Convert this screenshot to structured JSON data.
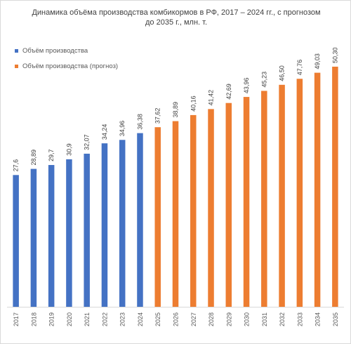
{
  "chart_data": {
    "type": "bar",
    "title": "Динамика  объёма производства комбикормов в РФ, 2017 – 2024 гг., с прогнозом до 2035 г., млн. т.",
    "xlabel": "",
    "ylabel": "",
    "ylim": [
      0,
      55
    ],
    "categories": [
      "2017",
      "2018",
      "2019",
      "2020",
      "2021",
      "2022",
      "2023",
      "2024",
      "2025",
      "2026",
      "2027",
      "2028",
      "2029",
      "2030",
      "2031",
      "2032",
      "2033",
      "2034",
      "2035"
    ],
    "legend_position": "top-left",
    "grid": false,
    "series": [
      {
        "name": "Объём производства",
        "color": "#4472C4",
        "values": [
          27.6,
          28.89,
          29.7,
          30.9,
          32.07,
          34.24,
          34.96,
          36.38,
          null,
          null,
          null,
          null,
          null,
          null,
          null,
          null,
          null,
          null,
          null
        ],
        "labels": [
          "27,6",
          "28,89",
          "29,7",
          "30,9",
          "32,07",
          "34,24",
          "34,96",
          "36,38",
          "",
          "",
          "",
          "",
          "",
          "",
          "",
          "",
          "",
          "",
          ""
        ]
      },
      {
        "name": "Объём производства (прогноз)",
        "color": "#ED7D31",
        "values": [
          null,
          null,
          null,
          null,
          null,
          null,
          null,
          null,
          37.62,
          38.89,
          40.16,
          41.42,
          42.69,
          43.96,
          45.23,
          46.5,
          47.76,
          49.03,
          50.3
        ],
        "labels": [
          "",
          "",
          "",
          "",
          "",
          "",
          "",
          "",
          "37,62",
          "38,89",
          "40,16",
          "41,42",
          "42,69",
          "43,96",
          "45,23",
          "46,50",
          "47,76",
          "49,03",
          "50,30"
        ]
      }
    ]
  }
}
